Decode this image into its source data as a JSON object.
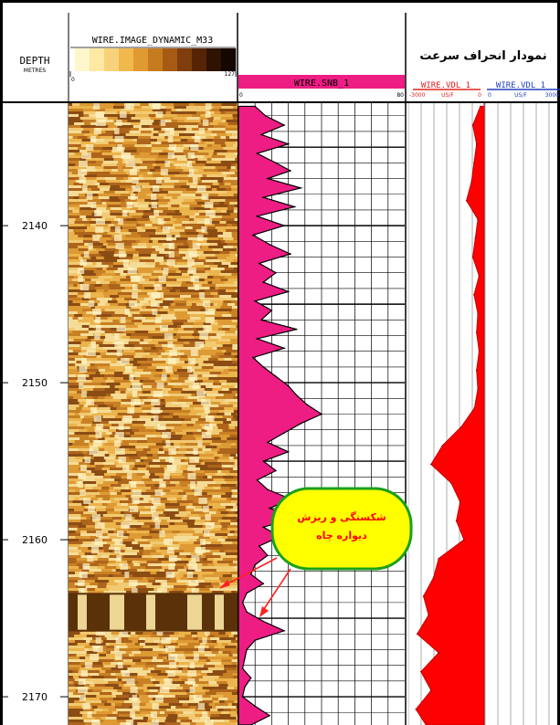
{
  "depth_track": {
    "title": "DEPTH",
    "unit": "METRES"
  },
  "image_track": {
    "name": "WIRE.IMAGE_DYNAMIC_M33",
    "scale_min": "0",
    "scale_max": "127",
    "palette": [
      "#fff6cc",
      "#fde8a4",
      "#f8d27a",
      "#f1b84e",
      "#e09a31",
      "#c77b1f",
      "#a75a14",
      "#7f3e0c",
      "#552406",
      "#2e1202",
      "#140600"
    ]
  },
  "snb_track": {
    "name": "WIRE.SNB_1",
    "scale_min": "0",
    "scale_max": "80",
    "color": "#ee1d84"
  },
  "vdl_track": {
    "title": "نمودار انحراف سرعت",
    "curves": [
      {
        "name": "WIRE.VDL_1",
        "scale_min": "-3000",
        "unit": "US/F",
        "scale_max": "0",
        "color": "#e02020"
      },
      {
        "name": "WIRE.VDL_1",
        "scale_min": "0",
        "unit": "US/F",
        "scale_max": "3000",
        "color": "#2040c0"
      }
    ],
    "fill_color": "#ff0000"
  },
  "annotation": {
    "line1": "شکستگی و ریزش",
    "line2": "دیواره چاه",
    "bubble_color": "#ffff00",
    "border_color": "#1aa01a",
    "text_color": "#ff0000",
    "arrow_color": "#ff2020"
  },
  "chart_data": {
    "type": "line",
    "depth_unit": "METRES",
    "depth_ticks": [
      2140,
      2150,
      2160,
      2170
    ],
    "depth_range": [
      2132.2,
      2171.8
    ],
    "series": [
      {
        "name": "WIRE.SNB_1",
        "range": [
          0,
          80
        ],
        "depth": [
          2132.4,
          2133.0,
          2133.6,
          2134.2,
          2134.8,
          2135.4,
          2136.0,
          2136.5,
          2137.0,
          2137.6,
          2138.2,
          2138.8,
          2139.4,
          2140.0,
          2140.6,
          2141.2,
          2141.8,
          2142.4,
          2143.0,
          2143.6,
          2144.2,
          2144.8,
          2145.4,
          2146.0,
          2146.6,
          2147.2,
          2147.8,
          2148.4,
          2149.0,
          2149.6,
          2150.2,
          2150.8,
          2151.4,
          2152.0,
          2152.6,
          2153.2,
          2153.8,
          2154.4,
          2155.0,
          2155.6,
          2156.2,
          2156.8,
          2157.4,
          2158.0,
          2158.6,
          2159.2,
          2159.8,
          2160.4,
          2161.0,
          2161.6,
          2162.2,
          2162.8,
          2163.4,
          2164.0,
          2164.6,
          2165.2,
          2165.8,
          2166.4,
          2167.0,
          2167.6,
          2168.2,
          2168.8,
          2169.4,
          2170.0,
          2170.6,
          2171.2,
          2171.8
        ],
        "values": [
          8,
          13,
          22,
          11,
          24,
          9,
          18,
          25,
          14,
          30,
          12,
          27,
          9,
          22,
          7,
          15,
          25,
          10,
          18,
          12,
          24,
          8,
          16,
          11,
          28,
          9,
          22,
          7,
          12,
          18,
          24,
          28,
          33,
          40,
          30,
          22,
          14,
          24,
          12,
          18,
          9,
          14,
          25,
          15,
          28,
          12,
          20,
          10,
          14,
          8,
          6,
          12,
          4,
          2,
          4,
          12,
          22,
          8,
          4,
          3,
          2,
          6,
          3,
          2,
          8,
          15,
          6
        ]
      },
      {
        "name": "WIRE.VDL_1",
        "range": [
          -3000,
          0
        ],
        "depth": [
          2132.4,
          2133.6,
          2134.8,
          2136.0,
          2137.2,
          2138.4,
          2139.6,
          2140.8,
          2142.0,
          2143.2,
          2144.4,
          2145.6,
          2146.8,
          2148.0,
          2149.2,
          2150.4,
          2151.6,
          2152.8,
          2154.0,
          2155.2,
          2156.4,
          2157.6,
          2158.8,
          2160.0,
          2161.2,
          2162.4,
          2163.6,
          2164.8,
          2166.0,
          2167.2,
          2168.4,
          2169.6,
          2170.8,
          2171.8
        ],
        "values": [
          -150,
          -450,
          -300,
          -400,
          -500,
          -700,
          -250,
          -350,
          -450,
          -200,
          -400,
          -250,
          -300,
          -200,
          -300,
          -250,
          -380,
          -900,
          -1650,
          -2100,
          -1300,
          -950,
          -1100,
          -800,
          -1800,
          -2000,
          -2400,
          -2200,
          -2650,
          -1800,
          -2500,
          -2100,
          -2700,
          -2300
        ]
      }
    ],
    "annotation_depth": [
      2164.2,
      2165.5
    ]
  }
}
